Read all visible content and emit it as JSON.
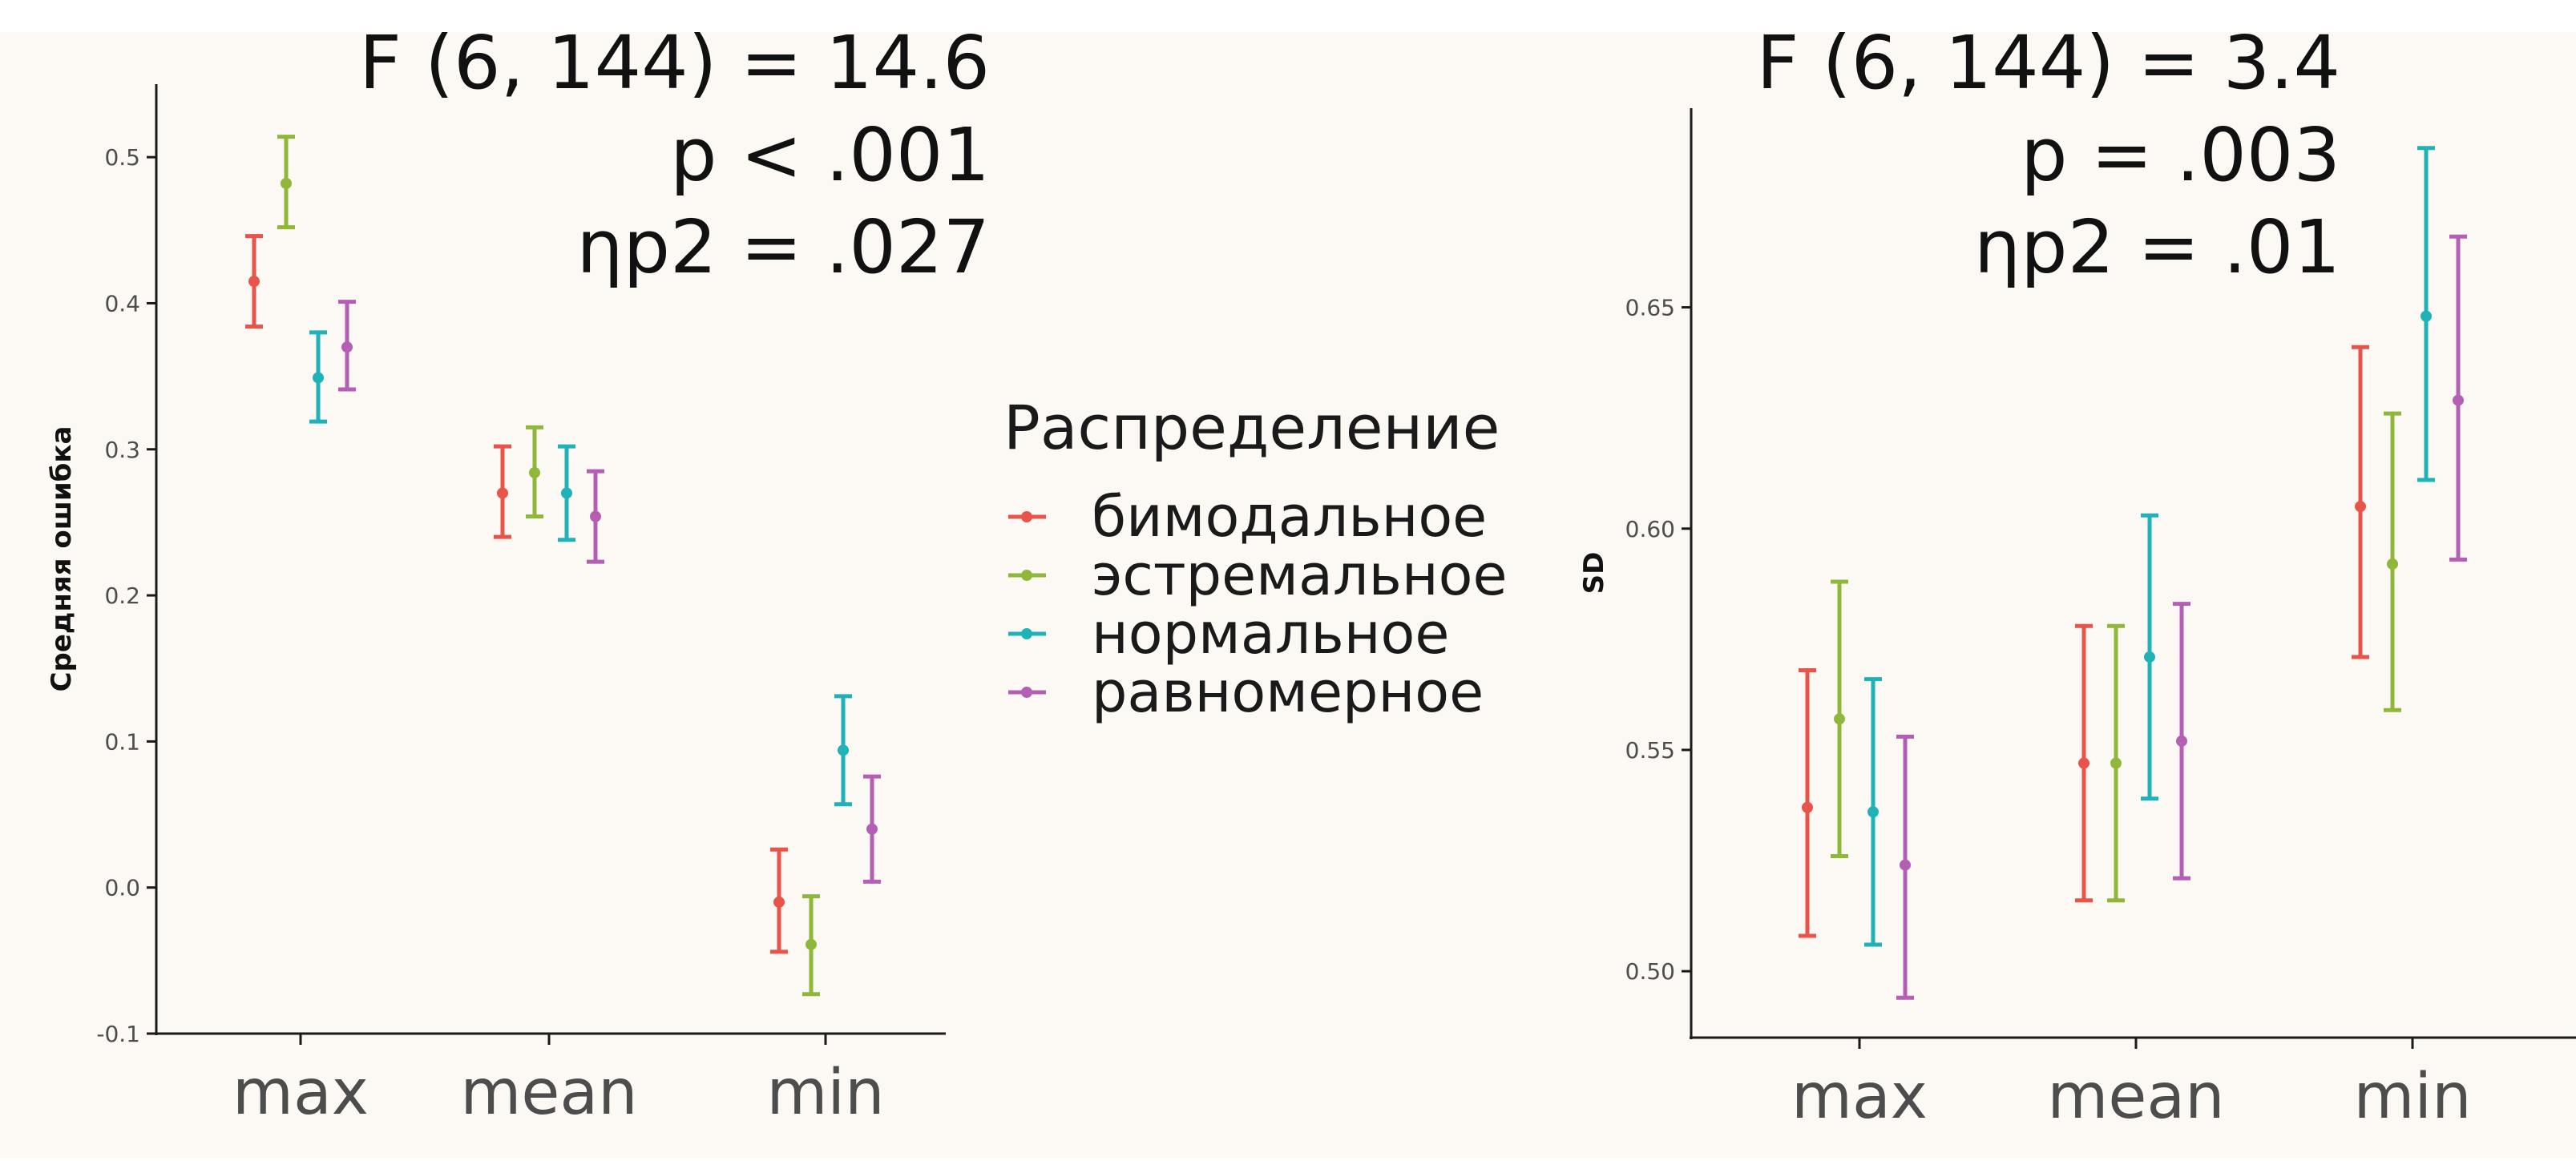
{
  "colors": {
    "background": "#fcf9f4",
    "axis": "#1a1a1a",
    "series": [
      "#e8534a",
      "#8fb83a",
      "#1fb3b8",
      "#b45fb3"
    ]
  },
  "chart_data": [
    {
      "type": "errorbar",
      "categories": [
        "max",
        "mean",
        "min"
      ],
      "ylabel": "Средняя ошибка",
      "xlabel": "",
      "ylim": [
        -0.1,
        0.55
      ],
      "yticks": [
        "-0.1",
        "0.0",
        "0.1",
        "0.2",
        "0.3",
        "0.4",
        "0.5"
      ],
      "grid": false,
      "stats": [
        "F (6, 144) = 14.6",
        "p < .001",
        "ηp2 = .027"
      ],
      "series": [
        {
          "name": "бимодальное",
          "means": [
            0.415,
            0.27,
            -0.01
          ],
          "lower": [
            0.384,
            0.24,
            -0.044
          ],
          "upper": [
            0.446,
            0.302,
            0.026
          ]
        },
        {
          "name": "эстремальное",
          "means": [
            0.482,
            0.284,
            -0.039
          ],
          "lower": [
            0.452,
            0.254,
            -0.073
          ],
          "upper": [
            0.514,
            0.315,
            -0.006
          ]
        },
        {
          "name": "нормальное",
          "means": [
            0.349,
            0.27,
            0.094
          ],
          "lower": [
            0.319,
            0.238,
            0.057
          ],
          "upper": [
            0.38,
            0.302,
            0.131
          ]
        },
        {
          "name": "равномерное",
          "means": [
            0.37,
            0.254,
            0.04
          ],
          "lower": [
            0.341,
            0.223,
            0.004
          ],
          "upper": [
            0.401,
            0.285,
            0.076
          ]
        }
      ]
    },
    {
      "type": "errorbar",
      "categories": [
        "max",
        "mean",
        "min"
      ],
      "ylabel": "SD",
      "xlabel": "",
      "ylim": [
        0.485,
        0.695
      ],
      "yticks": [
        "0.50",
        "0.55",
        "0.60",
        "0.65"
      ],
      "grid": false,
      "stats": [
        "F (6, 144) = 3.4",
        "p = .003",
        "ηp2 = .01"
      ],
      "series": [
        {
          "name": "бимодальное",
          "means": [
            0.537,
            0.547,
            0.605
          ],
          "lower": [
            0.508,
            0.516,
            0.571
          ],
          "upper": [
            0.568,
            0.578,
            0.641
          ]
        },
        {
          "name": "эстремальное",
          "means": [
            0.557,
            0.547,
            0.592
          ],
          "lower": [
            0.526,
            0.516,
            0.559
          ],
          "upper": [
            0.588,
            0.578,
            0.626
          ]
        },
        {
          "name": "нормальное",
          "means": [
            0.536,
            0.571,
            0.648
          ],
          "lower": [
            0.506,
            0.539,
            0.611
          ],
          "upper": [
            0.566,
            0.603,
            0.686
          ]
        },
        {
          "name": "равномерное",
          "means": [
            0.524,
            0.552,
            0.629
          ],
          "lower": [
            0.494,
            0.521,
            0.593
          ],
          "upper": [
            0.553,
            0.583,
            0.666
          ]
        }
      ]
    }
  ],
  "legend": {
    "title": "Распределение",
    "items": [
      "бимодальное",
      "эстремальное",
      "нормальное",
      "равномерное"
    ]
  }
}
